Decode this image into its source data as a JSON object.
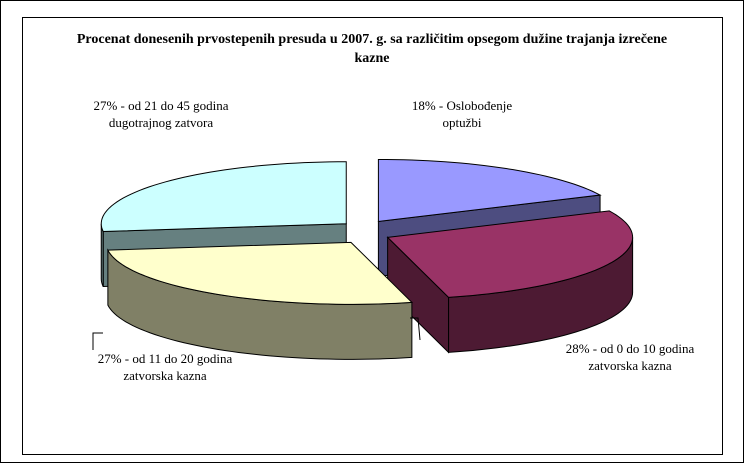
{
  "chart_data": {
    "type": "pie",
    "title": "Procenat donesenih prvostepenih presuda u 2007. g. sa različitim opsegom dužine trajanja izrečene kazne",
    "values": [
      18,
      28,
      27,
      27
    ],
    "value_labels": [
      "18% - Oslobođenje optužbi",
      "28% - od 0 do 10 godina zatvorska kazna",
      "27% - od 11 do 20 godina zatvorska kazna",
      "27% - od 21 do 45 godina dugotrajnog zatvora"
    ],
    "colors": [
      "#9999ff",
      "#993366",
      "#ffffcc",
      "#ccffff"
    ],
    "three_d": true,
    "exploded": true
  }
}
